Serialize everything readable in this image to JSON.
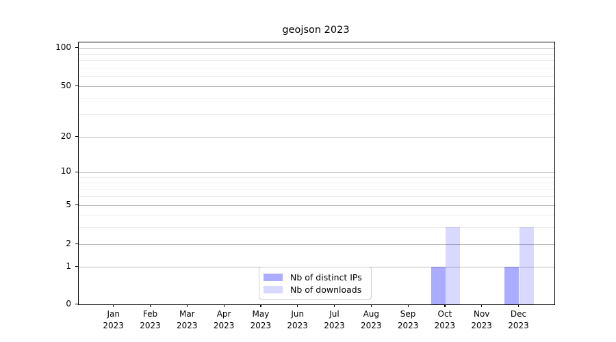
{
  "chart_data": {
    "type": "bar",
    "title": "geojson 2023",
    "year_label": "2023",
    "categories": [
      "Jan",
      "Feb",
      "Mar",
      "Apr",
      "May",
      "Jun",
      "Jul",
      "Aug",
      "Sep",
      "Oct",
      "Nov",
      "Dec"
    ],
    "series": [
      {
        "name": "Nb of distinct IPs",
        "color": "rgba(0,0,255,0.33)",
        "values": [
          0,
          0,
          0,
          0,
          0,
          0,
          0,
          0,
          0,
          1,
          0,
          1
        ]
      },
      {
        "name": "Nb of downloads",
        "color": "rgba(0,0,255,0.15)",
        "values": [
          0,
          0,
          0,
          0,
          0,
          0,
          0,
          0,
          0,
          3,
          0,
          3
        ]
      }
    ],
    "y_axis": {
      "ticks": [
        0,
        1,
        2,
        5,
        10,
        20,
        50,
        100
      ],
      "minor_ticks": [
        3,
        4,
        6,
        7,
        8,
        9,
        30,
        40,
        60,
        70,
        80,
        90
      ],
      "scale": "symlog",
      "range": [
        0,
        110
      ]
    },
    "x_axis": {
      "tick_label_lines": 2
    },
    "legend": {
      "position": "lower center"
    },
    "grid": {
      "major": true,
      "minor": true
    }
  },
  "colors": {
    "bar_distinct_ips_over_white": "#aaaaf5",
    "bar_downloads_over_white": "#d9d9fa",
    "grid_major": "#bcbcbc",
    "grid_minor": "#ececec",
    "axis": "#000000",
    "legend_border": "#cccccc",
    "background": "#ffffff"
  }
}
